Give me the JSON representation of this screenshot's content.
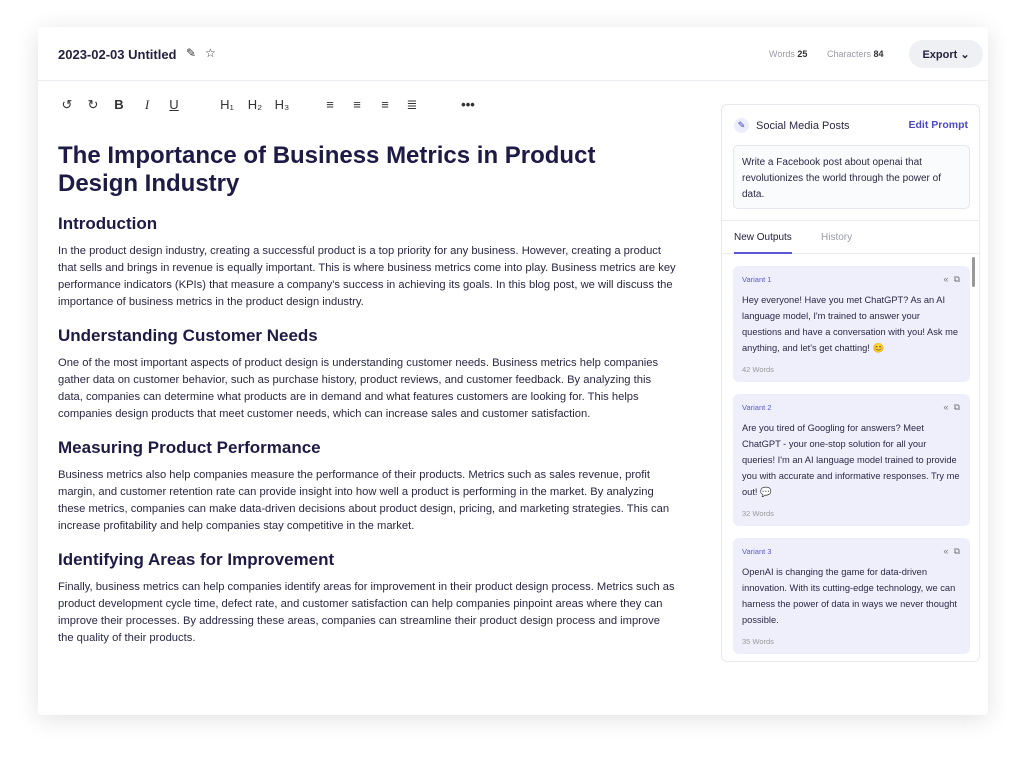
{
  "header": {
    "title": "2023-02-03 Untitled",
    "words_label": "Words",
    "words": "25",
    "chars_label": "Characters",
    "chars": "84",
    "export": "Export"
  },
  "toolbar": {
    "h1": "H₁",
    "h2": "H₂",
    "h3": "H₃"
  },
  "doc": {
    "title": "The Importance of Business Metrics in Product Design Industry",
    "sections": [
      {
        "heading": "Introduction",
        "text": "In the product design industry, creating a successful product is a top priority for any business. However, creating a product that sells and brings in revenue is equally important. This is where business metrics come into play. Business metrics are key performance indicators (KPIs) that measure a company's success in achieving its goals. In this blog post, we will discuss the importance of business metrics in the product design industry."
      },
      {
        "heading": "Understanding Customer Needs",
        "text": "One of the most important aspects of product design is understanding customer needs. Business metrics help companies gather data on customer behavior, such as purchase history, product reviews, and customer feedback. By analyzing this data, companies can determine what products are in demand and what features customers are looking for. This helps companies design products that meet customer needs, which can increase sales and customer satisfaction."
      },
      {
        "heading": "Measuring Product Performance",
        "text": "Business metrics also help companies measure the performance of their products. Metrics such as sales revenue, profit margin, and customer retention rate can provide insight into how well a product is performing in the market. By analyzing these metrics, companies can make data-driven decisions about product design, pricing, and marketing strategies. This can increase profitability and help companies stay competitive in the market."
      },
      {
        "heading": "Identifying Areas for Improvement",
        "text": "Finally, business metrics can help companies identify areas for improvement in their product design process. Metrics such as product development cycle time, defect rate, and customer satisfaction can help companies pinpoint areas where they can improve their processes. By addressing these areas, companies can streamline their product design process and improve the quality of their products."
      }
    ]
  },
  "panel": {
    "title": "Social Media Posts",
    "edit": "Edit Prompt",
    "prompt": "Write a Facebook post about openai that revolutionizes the world through the power of data.",
    "tabs": [
      "New Outputs",
      "History"
    ],
    "variants": [
      {
        "name": "Variant 1",
        "text": "Hey everyone! Have you met ChatGPT? As an AI language model, I'm trained to answer your questions and have a conversation with you! Ask me anything, and let's get chatting! 😊",
        "words": "42 Words"
      },
      {
        "name": "Variant 2",
        "text": "Are you tired of Googling for answers? Meet ChatGPT - your one-stop solution for all your queries! I'm an AI language model trained to provide you with accurate and informative responses. Try me out! 💬",
        "words": "32 Words"
      },
      {
        "name": "Variant 3",
        "text": "OpenAI is changing the game for data-driven innovation. With its cutting-edge technology, we can harness the power of data in ways we never thought possible.",
        "words": "35 Words"
      }
    ]
  },
  "colors": {
    "accent": "#5b57d6",
    "variant_bg": "#efeffc",
    "heading": "#1d1a45"
  }
}
